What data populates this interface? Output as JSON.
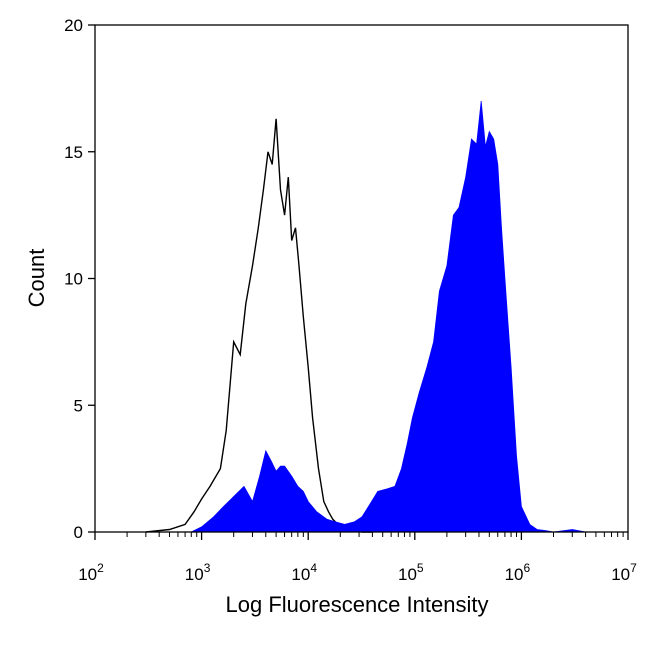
{
  "chart_data": {
    "type": "area",
    "title": "",
    "xlabel": "Log Fluorescence Intensity",
    "ylabel": "Count",
    "x_scale": "log",
    "xlim": [
      100,
      10000000
    ],
    "ylim": [
      0,
      20
    ],
    "x_ticks": [
      {
        "base": "10",
        "exp": "2",
        "value": 100
      },
      {
        "base": "10",
        "exp": "3",
        "value": 1000
      },
      {
        "base": "10",
        "exp": "4",
        "value": 10000
      },
      {
        "base": "10",
        "exp": "5",
        "value": 100000
      },
      {
        "base": "10",
        "exp": "6",
        "value": 1000000
      },
      {
        "base": "10",
        "exp": "7",
        "value": 10000000
      }
    ],
    "y_ticks": [
      "0",
      "5",
      "10",
      "15",
      "20"
    ],
    "grid": false,
    "legend": "none",
    "series": [
      {
        "style": "outline",
        "color": "#000000",
        "x": [
          300,
          500,
          700,
          850,
          1000,
          1200,
          1500,
          1700,
          2000,
          2300,
          2600,
          3000,
          3400,
          3800,
          4200,
          4600,
          5000,
          5500,
          6000,
          6500,
          7000,
          7600,
          8200,
          9000,
          10000,
          11000,
          12500,
          14000,
          15500,
          17000,
          19000,
          21000,
          24000,
          28000,
          32000,
          40000
        ],
        "y": [
          0,
          0.1,
          0.3,
          0.8,
          1.3,
          1.8,
          2.5,
          4.0,
          7.5,
          7.0,
          9.0,
          10.5,
          12.0,
          13.5,
          15.0,
          14.5,
          16.3,
          13.5,
          12.5,
          14.0,
          11.5,
          12.0,
          10.5,
          8.5,
          6.5,
          4.5,
          2.5,
          1.2,
          0.8,
          0.5,
          0.3,
          0.2,
          0.1,
          0.05,
          0,
          0
        ]
      },
      {
        "style": "filled",
        "color": "#0000ff",
        "x": [
          800,
          1000,
          1300,
          1600,
          2000,
          2500,
          3000,
          3500,
          4000,
          4500,
          5000,
          5500,
          6000,
          7000,
          8000,
          9000,
          10000,
          12000,
          15000,
          18000,
          22000,
          27000,
          32000,
          38000,
          45000,
          55000,
          65000,
          75000,
          85000,
          95000,
          110000,
          130000,
          150000,
          170000,
          200000,
          230000,
          260000,
          300000,
          340000,
          380000,
          420000,
          460000,
          500000,
          550000,
          600000,
          650000,
          700000,
          800000,
          900000,
          1000000,
          1200000,
          1400000,
          1700000,
          2000000,
          3000000,
          4000000,
          5000000
        ],
        "y": [
          0,
          0.2,
          0.6,
          1.0,
          1.4,
          1.8,
          1.2,
          2.2,
          3.2,
          2.8,
          2.4,
          2.6,
          2.6,
          2.2,
          1.8,
          1.6,
          1.2,
          0.8,
          0.5,
          0.4,
          0.3,
          0.4,
          0.6,
          1.1,
          1.6,
          1.7,
          1.8,
          2.5,
          3.5,
          4.5,
          5.5,
          6.5,
          7.5,
          9.5,
          10.5,
          12.5,
          12.8,
          14.0,
          15.5,
          15.3,
          17.0,
          15.2,
          15.8,
          15.5,
          14.5,
          12.0,
          10.0,
          6.5,
          3.0,
          1.0,
          0.3,
          0.1,
          0.05,
          0,
          0.1,
          0,
          0
        ]
      }
    ]
  }
}
